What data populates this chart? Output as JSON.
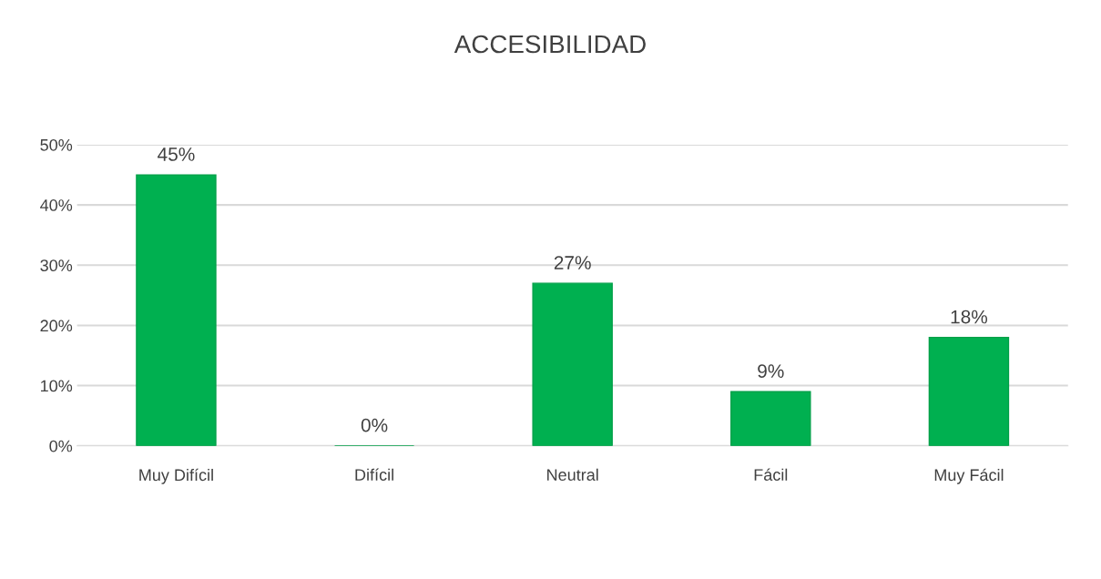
{
  "chart_data": {
    "type": "bar",
    "title": "ACCESIBILIDAD",
    "categories": [
      "Muy Difícil",
      "Difícil",
      "Neutral",
      "Fácil",
      "Muy Fácil"
    ],
    "values": [
      45,
      0,
      27,
      9,
      18
    ],
    "value_labels": [
      "45%",
      "0%",
      "27%",
      "9%",
      "18%"
    ],
    "color": "#00b050",
    "ylim": [
      0,
      50
    ],
    "yticks": [
      {
        "value": 0,
        "label": "0%"
      },
      {
        "value": 10,
        "label": "10%"
      },
      {
        "value": 20,
        "label": "20%"
      },
      {
        "value": 30,
        "label": "30%"
      },
      {
        "value": 40,
        "label": "40%"
      },
      {
        "value": 50,
        "label": "50%"
      }
    ],
    "grid": "y",
    "legend": false
  }
}
